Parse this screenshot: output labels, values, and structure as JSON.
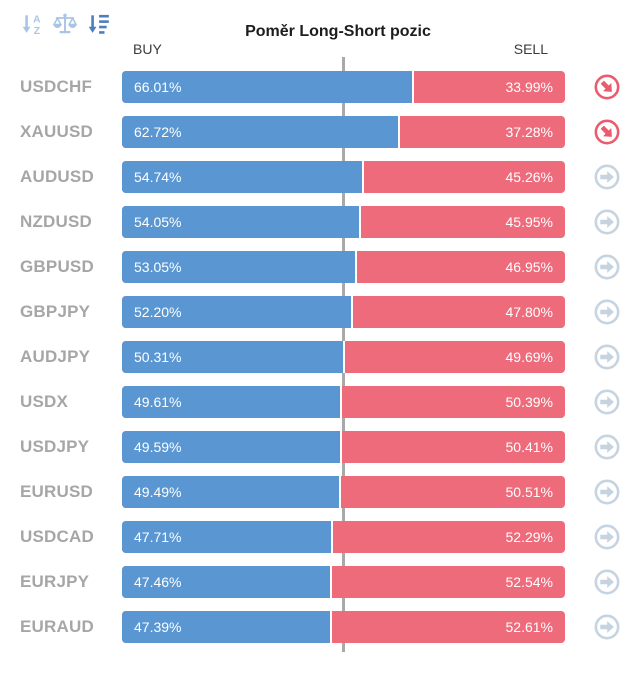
{
  "widget": {
    "title": "Poměr Long-Short pozic",
    "buy_header": "BUY",
    "sell_header": "SELL"
  },
  "toolbar": {
    "icons": [
      "sort-alphabetical-icon",
      "balance-scale-icon",
      "sort-amount-icon"
    ],
    "active_icon": "sort-amount-icon"
  },
  "colors": {
    "buy": "#5996d2",
    "sell": "#ee6b7b",
    "divider": "#44252d",
    "center_line": "#a9a9a9",
    "symbol_text": "#a6a6a6",
    "icon_inactive": "#a9c5e5",
    "icon_active": "#4d7fbe",
    "trend_down": "#ea5b6d",
    "trend_flat": "#c6d3e0"
  },
  "rows": [
    {
      "symbol": "USDCHF",
      "buy": "66.01%",
      "sell": "33.99%",
      "buy_value": 66.01,
      "sell_value": 33.99,
      "trend": "down"
    },
    {
      "symbol": "XAUUSD",
      "buy": "62.72%",
      "sell": "37.28%",
      "buy_value": 62.72,
      "sell_value": 37.28,
      "trend": "down"
    },
    {
      "symbol": "AUDUSD",
      "buy": "54.74%",
      "sell": "45.26%",
      "buy_value": 54.74,
      "sell_value": 45.26,
      "trend": "flat"
    },
    {
      "symbol": "NZDUSD",
      "buy": "54.05%",
      "sell": "45.95%",
      "buy_value": 54.05,
      "sell_value": 45.95,
      "trend": "flat"
    },
    {
      "symbol": "GBPUSD",
      "buy": "53.05%",
      "sell": "46.95%",
      "buy_value": 53.05,
      "sell_value": 46.95,
      "trend": "flat"
    },
    {
      "symbol": "GBPJPY",
      "buy": "52.20%",
      "sell": "47.80%",
      "buy_value": 52.2,
      "sell_value": 47.8,
      "trend": "flat"
    },
    {
      "symbol": "AUDJPY",
      "buy": "50.31%",
      "sell": "49.69%",
      "buy_value": 50.31,
      "sell_value": 49.69,
      "trend": "flat"
    },
    {
      "symbol": "USDX",
      "buy": "49.61%",
      "sell": "50.39%",
      "buy_value": 49.61,
      "sell_value": 50.39,
      "trend": "flat"
    },
    {
      "symbol": "USDJPY",
      "buy": "49.59%",
      "sell": "50.41%",
      "buy_value": 49.59,
      "sell_value": 50.41,
      "trend": "flat"
    },
    {
      "symbol": "EURUSD",
      "buy": "49.49%",
      "sell": "50.51%",
      "buy_value": 49.49,
      "sell_value": 50.51,
      "trend": "flat"
    },
    {
      "symbol": "USDCAD",
      "buy": "47.71%",
      "sell": "52.29%",
      "buy_value": 47.71,
      "sell_value": 52.29,
      "trend": "flat"
    },
    {
      "symbol": "EURJPY",
      "buy": "47.46%",
      "sell": "52.54%",
      "buy_value": 47.46,
      "sell_value": 52.54,
      "trend": "flat"
    },
    {
      "symbol": "EURAUD",
      "buy": "47.39%",
      "sell": "52.61%",
      "buy_value": 47.39,
      "sell_value": 52.61,
      "trend": "flat"
    }
  ],
  "chart_data": {
    "type": "bar",
    "orientation": "horizontal-stacked",
    "title": "Poměr Long-Short pozic",
    "categories": [
      "USDCHF",
      "XAUUSD",
      "AUDUSD",
      "NZDUSD",
      "GBPUSD",
      "GBPJPY",
      "AUDJPY",
      "USDX",
      "USDJPY",
      "EURUSD",
      "USDCAD",
      "EURJPY",
      "EURAUD"
    ],
    "series": [
      {
        "name": "BUY",
        "color": "#5996d2",
        "values": [
          66.01,
          62.72,
          54.74,
          54.05,
          53.05,
          52.2,
          50.31,
          49.61,
          49.59,
          49.49,
          47.71,
          47.46,
          47.39
        ]
      },
      {
        "name": "SELL",
        "color": "#ee6b7b",
        "values": [
          33.99,
          37.28,
          45.26,
          45.95,
          46.95,
          47.8,
          49.69,
          50.39,
          50.41,
          50.51,
          52.29,
          52.54,
          52.61
        ]
      }
    ],
    "xlim": [
      0,
      100
    ],
    "center_reference_line": 50,
    "value_labels": "inside-bars",
    "legend_position": "top (BUY left, SELL right)",
    "grid": false
  }
}
